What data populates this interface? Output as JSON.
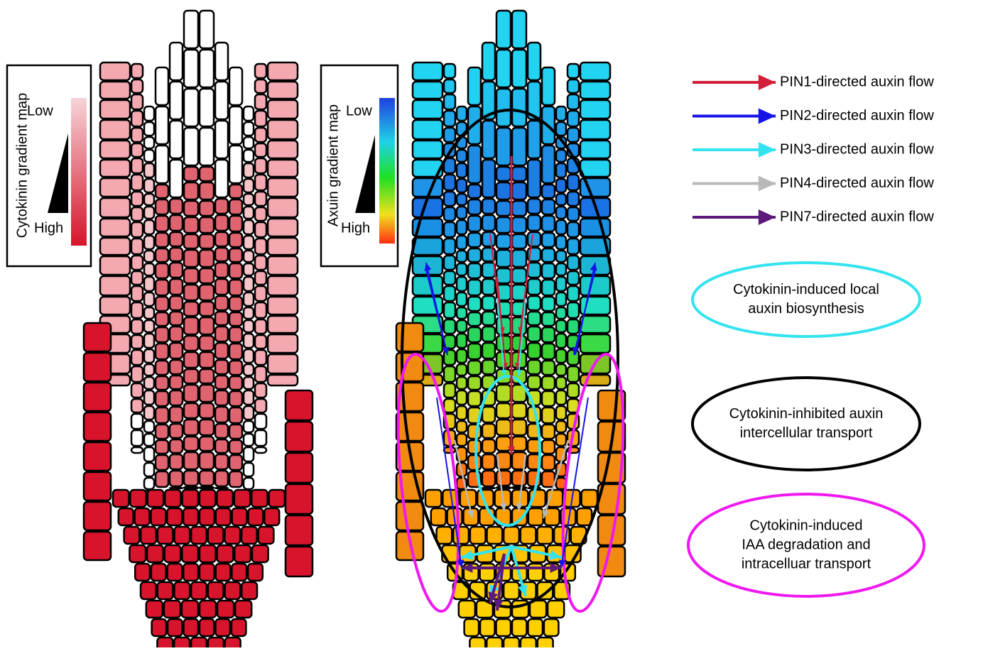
{
  "left_panel": {
    "legend_box": {
      "title": "Cytokinin gradient map",
      "low": "Low",
      "high": "High"
    }
  },
  "right_panel": {
    "legend_box": {
      "title": "Axuin gradient map",
      "low": "Low",
      "high": "High"
    }
  },
  "legend": {
    "arrows": [
      {
        "label": "PIN1-directed auxin flow",
        "color": "#d41f3a"
      },
      {
        "label": "PIN2-directed auxin flow",
        "color": "#1414e6"
      },
      {
        "label": "PIN3-directed auxin flow",
        "color": "#33e3f0"
      },
      {
        "label": "PIN4-directed auxin flow",
        "color": "#b8b8b8"
      },
      {
        "label": "PIN7-directed auxin flow",
        "color": "#5c1a7c"
      }
    ],
    "ellipses": [
      {
        "lines": [
          "Cytokinin-induced local",
          "auxin biosynthesis"
        ],
        "color": "#33e3f0"
      },
      {
        "lines": [
          "Cytokinin-inhibited auxin",
          "intercellular transport"
        ],
        "color": "#000000"
      },
      {
        "lines": [
          "Cytokinin-induced",
          "IAA degradation and",
          "intracelluar transport"
        ],
        "color": "#f018f0"
      }
    ]
  }
}
